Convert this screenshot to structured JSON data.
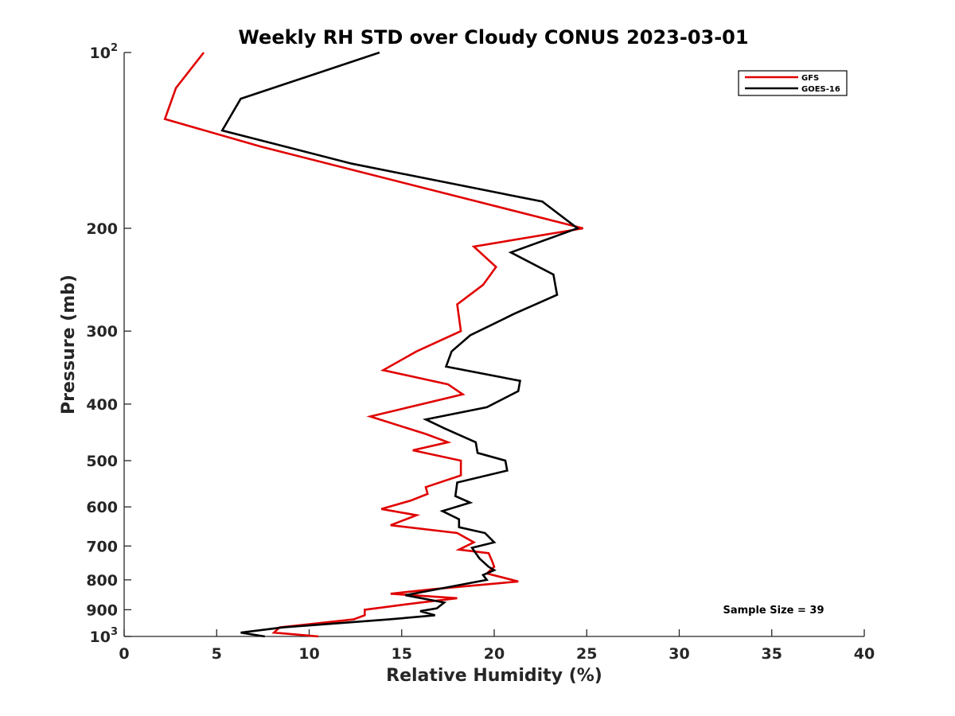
{
  "chart_data": {
    "type": "line",
    "title": "Weekly RH STD over Cloudy CONUS 2023-03-01",
    "xlabel": "Relative Humidity (%)",
    "ylabel": "Pressure (mb)",
    "xlim": [
      0,
      40
    ],
    "ylim": [
      100,
      1000
    ],
    "y_scale": "log",
    "y_reversed": true,
    "grid": false,
    "legend_position": "top-right",
    "x_ticks": [
      0,
      5,
      10,
      15,
      20,
      25,
      30,
      35,
      40
    ],
    "x_tick_labels": [
      "0",
      "5",
      "10",
      "15",
      "20",
      "25",
      "30",
      "35",
      "40"
    ],
    "y_ticks": [
      {
        "value": 100,
        "base": "10",
        "exp": "2"
      },
      {
        "value": 200,
        "base": "200",
        "exp": ""
      },
      {
        "value": 300,
        "base": "300",
        "exp": ""
      },
      {
        "value": 400,
        "base": "400",
        "exp": ""
      },
      {
        "value": 500,
        "base": "500",
        "exp": ""
      },
      {
        "value": 600,
        "base": "600",
        "exp": ""
      },
      {
        "value": 700,
        "base": "700",
        "exp": ""
      },
      {
        "value": 800,
        "base": "800",
        "exp": ""
      },
      {
        "value": 900,
        "base": "900",
        "exp": ""
      },
      {
        "value": 1000,
        "base": "10",
        "exp": "3"
      }
    ],
    "annotation": "Sample Size = 39",
    "series": [
      {
        "name": "GFS",
        "color": "#e00000",
        "points": [
          [
            4.3,
            100
          ],
          [
            2.8,
            115
          ],
          [
            2.2,
            130
          ],
          [
            7.4,
            145
          ],
          [
            24.8,
            200
          ],
          [
            18.9,
            215
          ],
          [
            20.1,
            233
          ],
          [
            19.4,
            250
          ],
          [
            18.0,
            270
          ],
          [
            18.2,
            300
          ],
          [
            15.8,
            325
          ],
          [
            14.0,
            350
          ],
          [
            17.5,
            370
          ],
          [
            18.3,
            385
          ],
          [
            13.3,
            420
          ],
          [
            16.3,
            450
          ],
          [
            17.5,
            465
          ],
          [
            15.6,
            480
          ],
          [
            18.2,
            500
          ],
          [
            18.2,
            530
          ],
          [
            16.3,
            555
          ],
          [
            16.4,
            570
          ],
          [
            15.5,
            585
          ],
          [
            13.9,
            605
          ],
          [
            15.8,
            620
          ],
          [
            14.4,
            645
          ],
          [
            18.0,
            665
          ],
          [
            18.9,
            690
          ],
          [
            18.1,
            710
          ],
          [
            19.7,
            720
          ],
          [
            19.9,
            745
          ],
          [
            20.0,
            760
          ],
          [
            19.6,
            780
          ],
          [
            21.3,
            805
          ],
          [
            16.7,
            830
          ],
          [
            14.4,
            845
          ],
          [
            18.0,
            860
          ],
          [
            16.0,
            875
          ],
          [
            13.0,
            900
          ],
          [
            13.0,
            920
          ],
          [
            12.4,
            935
          ],
          [
            8.4,
            965
          ],
          [
            8.1,
            985
          ],
          [
            10.5,
            1000
          ]
        ]
      },
      {
        "name": "GOES-16",
        "color": "#000000",
        "points": [
          [
            13.8,
            100
          ],
          [
            6.3,
            120
          ],
          [
            5.3,
            136
          ],
          [
            12.3,
            155
          ],
          [
            22.6,
            180
          ],
          [
            24.5,
            200
          ],
          [
            20.9,
            220
          ],
          [
            23.2,
            240
          ],
          [
            23.4,
            260
          ],
          [
            21.1,
            280
          ],
          [
            18.7,
            305
          ],
          [
            17.7,
            325
          ],
          [
            17.4,
            345
          ],
          [
            21.4,
            365
          ],
          [
            21.3,
            380
          ],
          [
            19.6,
            405
          ],
          [
            16.3,
            425
          ],
          [
            17.3,
            440
          ],
          [
            19.0,
            465
          ],
          [
            19.1,
            485
          ],
          [
            20.6,
            500
          ],
          [
            20.7,
            520
          ],
          [
            18.0,
            545
          ],
          [
            17.9,
            575
          ],
          [
            18.7,
            590
          ],
          [
            17.2,
            610
          ],
          [
            18.1,
            630
          ],
          [
            18.1,
            650
          ],
          [
            19.5,
            665
          ],
          [
            20.0,
            690
          ],
          [
            18.8,
            705
          ],
          [
            19.2,
            735
          ],
          [
            19.7,
            760
          ],
          [
            20.0,
            770
          ],
          [
            19.4,
            785
          ],
          [
            19.6,
            800
          ],
          [
            16.5,
            835
          ],
          [
            15.2,
            850
          ],
          [
            17.3,
            875
          ],
          [
            16.9,
            895
          ],
          [
            16.0,
            905
          ],
          [
            16.8,
            920
          ],
          [
            14.3,
            935
          ],
          [
            8.6,
            965
          ],
          [
            6.3,
            985
          ],
          [
            7.6,
            1000
          ]
        ]
      }
    ]
  }
}
